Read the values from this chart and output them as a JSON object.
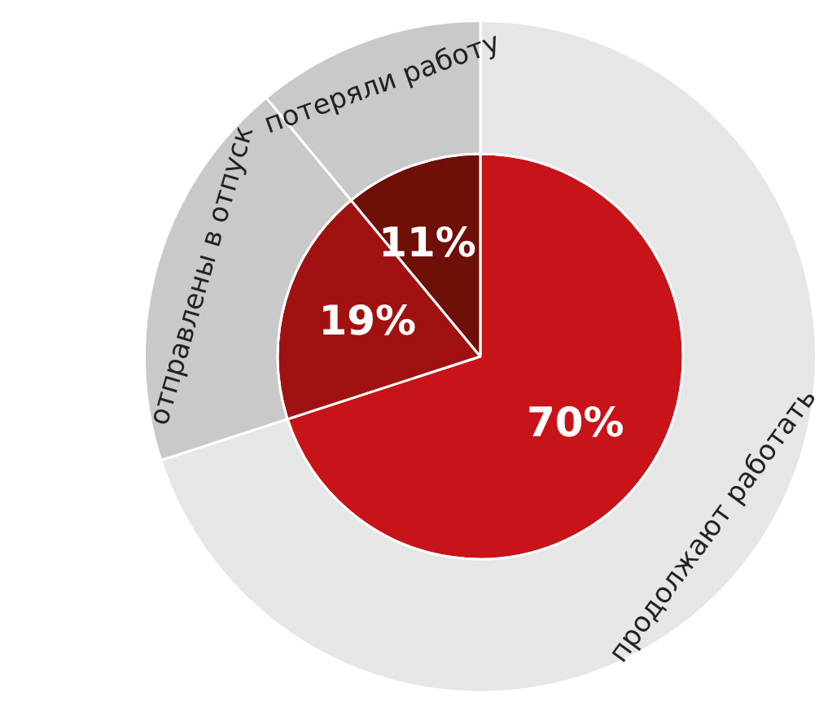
{
  "chart_data": {
    "type": "pie",
    "categories": [
      "продолжают работать",
      "отправлены в отпуск",
      "потеряли работу"
    ],
    "series": [
      {
        "values": [
          70,
          19,
          11
        ],
        "colors": [
          "#c81419",
          "#a01212",
          "#6e0f08"
        ],
        "value_labels": [
          "70%",
          "19%",
          "11%"
        ]
      },
      {
        "values": [
          70,
          19,
          11
        ],
        "colors": [
          "#e6e6e6",
          "#c9c9c9",
          "#c9c9c9"
        ]
      }
    ],
    "legend": false
  }
}
